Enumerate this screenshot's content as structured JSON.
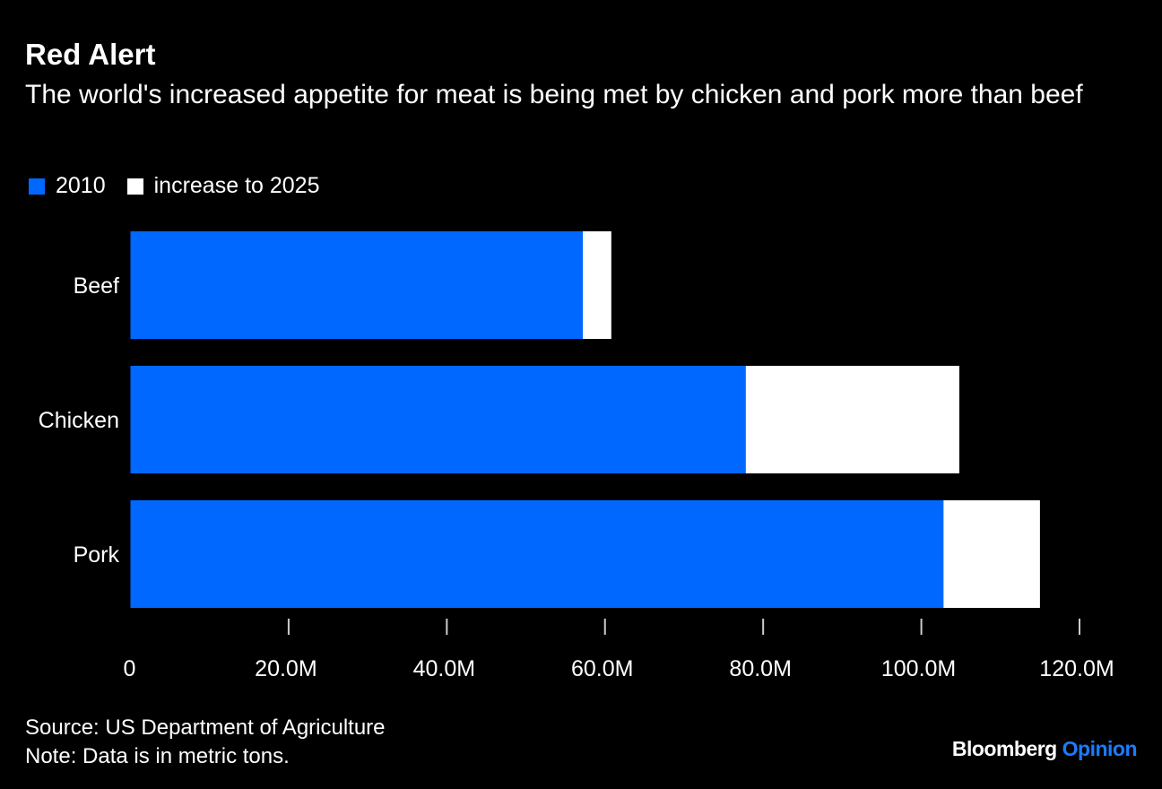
{
  "chart_data": {
    "type": "bar",
    "orientation": "horizontal",
    "stacked": true,
    "title": "Red Alert",
    "subtitle": "The world's increased appetite for meat is being met by chicken and pork more than beef",
    "categories": [
      "Beef",
      "Chicken",
      "Pork"
    ],
    "series": [
      {
        "name": "2010",
        "color": "#0068ff",
        "values": [
          57.2,
          77.8,
          102.8
        ]
      },
      {
        "name": "increase to 2025",
        "color": "#ffffff",
        "values": [
          3.6,
          27.0,
          12.2
        ]
      }
    ],
    "unit": "M metric tons",
    "xlim": [
      0,
      120
    ],
    "xticks": [
      0,
      20,
      40,
      60,
      80,
      100,
      120
    ],
    "xtick_labels": [
      "0",
      "20.0M",
      "40.0M",
      "60.0M",
      "80.0M",
      "100.0M",
      "120.0M"
    ],
    "legend_position": "top-left",
    "grid": false
  },
  "footer": {
    "source": "Source: US Department of Agriculture",
    "note": "Note: Data is in metric tons."
  },
  "logo": {
    "brand": "Bloomberg",
    "section": "Opinion"
  }
}
